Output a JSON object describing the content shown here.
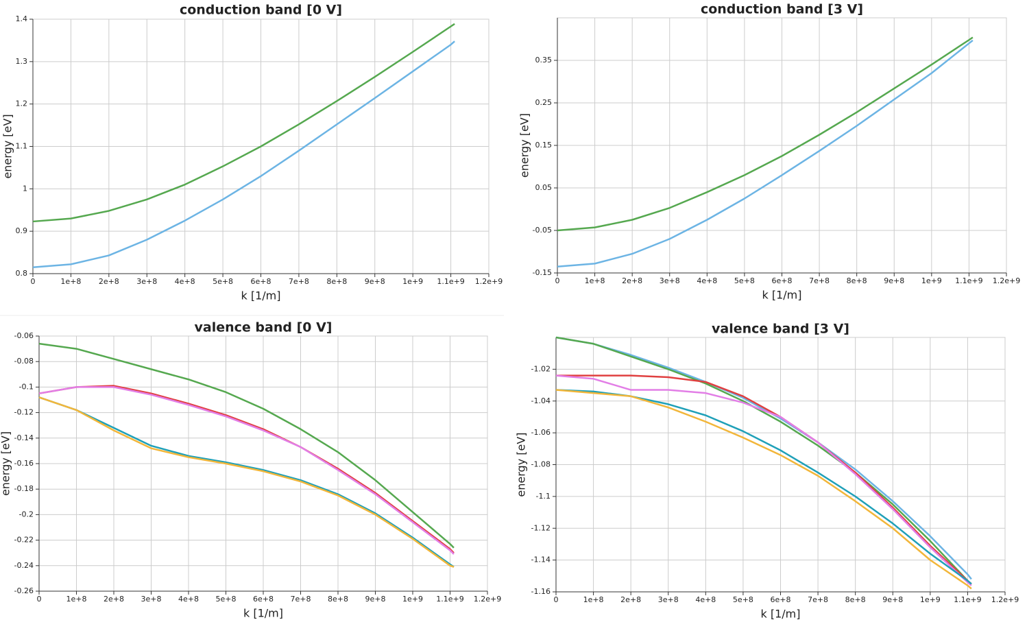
{
  "chart_data": [
    {
      "type": "line",
      "title": "conduction band [0 V]",
      "x_label": "k [1/m]",
      "y_label": "energy [eV]",
      "x": [
        0,
        100000000.0,
        200000000.0,
        300000000.0,
        400000000.0,
        500000000.0,
        600000000.0,
        700000000.0,
        800000000.0,
        900000000.0,
        1000000000.0,
        1100000000.0,
        1110000000.0
      ],
      "series": [
        {
          "color": "#6cb4e4",
          "values": [
            0.815,
            0.822,
            0.843,
            0.88,
            0.925,
            0.975,
            1.03,
            1.09,
            1.152,
            1.214,
            1.277,
            1.34,
            1.348
          ]
        },
        {
          "color": "#55a84f",
          "values": [
            0.923,
            0.93,
            0.948,
            0.975,
            1.01,
            1.053,
            1.1,
            1.152,
            1.207,
            1.264,
            1.323,
            1.383,
            1.389
          ]
        }
      ],
      "xlim": [
        0,
        1200000000.0
      ],
      "ylim": [
        0.8,
        1.4
      ],
      "xticks": [
        0,
        {
          "value": 100000000.0,
          "label": "1e+8"
        },
        {
          "value": 200000000.0,
          "label": "2e+8"
        },
        {
          "value": 300000000.0,
          "label": "3e+8"
        },
        {
          "value": 400000000.0,
          "label": "4e+8"
        },
        {
          "value": 500000000.0,
          "label": "5e+8"
        },
        {
          "value": 600000000.0,
          "label": "6e+8"
        },
        {
          "value": 700000000.0,
          "label": "7e+8"
        },
        {
          "value": 800000000.0,
          "label": "8e+8"
        },
        {
          "value": 900000000.0,
          "label": "9e+8"
        },
        {
          "value": 1000000000.0,
          "label": "1e+9"
        },
        {
          "value": 1100000000.0,
          "label": "1.1e+9"
        },
        {
          "value": 1200000000.0,
          "label": "1.2e+9"
        }
      ],
      "yticks": [
        0.8,
        0.9,
        1,
        1.1,
        1.2,
        1.3,
        1.4
      ],
      "grid": true
    },
    {
      "type": "line",
      "title": "conduction band [3 V]",
      "x_label": "k [1/m]",
      "y_label": "energy [eV]",
      "x": [
        0,
        100000000.0,
        200000000.0,
        300000000.0,
        400000000.0,
        500000000.0,
        600000000.0,
        700000000.0,
        800000000.0,
        900000000.0,
        1000000000.0,
        1100000000.0,
        1110000000.0
      ],
      "series": [
        {
          "color": "#6cb4e4",
          "values": [
            -0.135,
            -0.128,
            -0.105,
            -0.07,
            -0.025,
            0.025,
            0.08,
            0.137,
            0.196,
            0.258,
            0.32,
            0.39,
            0.397
          ]
        },
        {
          "color": "#55a84f",
          "values": [
            -0.05,
            -0.043,
            -0.025,
            0.003,
            0.04,
            0.08,
            0.125,
            0.175,
            0.228,
            0.284,
            0.34,
            0.398,
            0.404
          ]
        }
      ],
      "xlim": [
        0,
        1200000000.0
      ],
      "ylim": [
        -0.15,
        0.45
      ],
      "xticks": [
        0,
        {
          "value": 100000000.0,
          "label": "1e+8"
        },
        {
          "value": 200000000.0,
          "label": "2e+8"
        },
        {
          "value": 300000000.0,
          "label": "3e+8"
        },
        {
          "value": 400000000.0,
          "label": "4e+8"
        },
        {
          "value": 500000000.0,
          "label": "5e+8"
        },
        {
          "value": 600000000.0,
          "label": "6e+8"
        },
        {
          "value": 700000000.0,
          "label": "7e+8"
        },
        {
          "value": 800000000.0,
          "label": "8e+8"
        },
        {
          "value": 900000000.0,
          "label": "9e+8"
        },
        {
          "value": 1000000000.0,
          "label": "1e+9"
        },
        {
          "value": 1100000000.0,
          "label": "1.1e+9"
        },
        {
          "value": 1200000000.0,
          "label": "1.2e+9"
        }
      ],
      "yticks": [
        -0.15,
        -0.05,
        0.05,
        0.15,
        0.25,
        0.35
      ],
      "grid": true
    },
    {
      "type": "line",
      "title": "valence band [0 V]",
      "x_label": "k [1/m]",
      "y_label": "energy [eV]",
      "x": [
        0,
        100000000.0,
        200000000.0,
        300000000.0,
        400000000.0,
        500000000.0,
        600000000.0,
        700000000.0,
        800000000.0,
        900000000.0,
        1000000000.0,
        1100000000.0,
        1110000000.0
      ],
      "series": [
        {
          "color": "#55a84f",
          "values": [
            -0.066,
            -0.07,
            -0.078,
            -0.086,
            -0.094,
            -0.104,
            -0.117,
            -0.133,
            -0.151,
            -0.173,
            -0.198,
            -0.223,
            -0.226
          ]
        },
        {
          "color": "#e04040",
          "values": [
            -0.105,
            -0.1,
            -0.099,
            -0.105,
            -0.113,
            -0.122,
            -0.133,
            -0.147,
            -0.164,
            -0.183,
            -0.205,
            -0.227,
            -0.23
          ]
        },
        {
          "color": "#e27ee6",
          "values": [
            -0.105,
            -0.1,
            -0.1,
            -0.106,
            -0.114,
            -0.123,
            -0.134,
            -0.147,
            -0.165,
            -0.184,
            -0.206,
            -0.228,
            -0.231
          ]
        },
        {
          "color": "#1fa0b8",
          "values": [
            -0.108,
            -0.118,
            -0.132,
            -0.146,
            -0.154,
            -0.159,
            -0.165,
            -0.173,
            -0.184,
            -0.199,
            -0.218,
            -0.239,
            -0.241
          ]
        },
        {
          "color": "#f2b63a",
          "values": [
            -0.108,
            -0.118,
            -0.134,
            -0.148,
            -0.155,
            -0.16,
            -0.166,
            -0.174,
            -0.185,
            -0.2,
            -0.219,
            -0.24,
            -0.241
          ]
        }
      ],
      "xlim": [
        0,
        1200000000.0
      ],
      "ylim": [
        -0.26,
        -0.06
      ],
      "xticks": [
        0,
        {
          "value": 100000000.0,
          "label": "1e+8"
        },
        {
          "value": 200000000.0,
          "label": "2e+8"
        },
        {
          "value": 300000000.0,
          "label": "3e+8"
        },
        {
          "value": 400000000.0,
          "label": "4e+8"
        },
        {
          "value": 500000000.0,
          "label": "5e+8"
        },
        {
          "value": 600000000.0,
          "label": "6e+8"
        },
        {
          "value": 700000000.0,
          "label": "7e+8"
        },
        {
          "value": 800000000.0,
          "label": "8e+8"
        },
        {
          "value": 900000000.0,
          "label": "9e+8"
        },
        {
          "value": 1000000000.0,
          "label": "1e+9"
        },
        {
          "value": 1100000000.0,
          "label": "1.1e+9"
        },
        {
          "value": 1200000000.0,
          "label": "1.2e+9"
        }
      ],
      "yticks": [
        -0.26,
        -0.24,
        -0.22,
        -0.2,
        -0.18,
        -0.16,
        -0.14,
        -0.12,
        -0.1,
        -0.08,
        -0.06
      ],
      "grid": true
    },
    {
      "type": "line",
      "title": "valence band [3 V]",
      "x_label": "k [1/m]",
      "y_label": "energy [eV]",
      "x": [
        0,
        100000000.0,
        200000000.0,
        300000000.0,
        400000000.0,
        500000000.0,
        600000000.0,
        700000000.0,
        800000000.0,
        900000000.0,
        1000000000.0,
        1100000000.0,
        1110000000.0
      ],
      "series": [
        {
          "color": "#6cb4e4",
          "values": [
            -1.0,
            -1.004,
            -1.011,
            -1.019,
            -1.028,
            -1.038,
            -1.051,
            -1.066,
            -1.083,
            -1.103,
            -1.125,
            -1.149,
            -1.152
          ]
        },
        {
          "color": "#55a84f",
          "values": [
            -1.0,
            -1.004,
            -1.012,
            -1.02,
            -1.029,
            -1.04,
            -1.053,
            -1.068,
            -1.085,
            -1.105,
            -1.128,
            -1.153,
            -1.155
          ]
        },
        {
          "color": "#e04040",
          "values": [
            -1.024,
            -1.024,
            -1.024,
            -1.025,
            -1.028,
            -1.037,
            -1.05,
            -1.066,
            -1.085,
            -1.107,
            -1.131,
            -1.153,
            -1.155
          ]
        },
        {
          "color": "#e27ee6",
          "values": [
            -1.024,
            -1.026,
            -1.033,
            -1.033,
            -1.035,
            -1.041,
            -1.05,
            -1.066,
            -1.086,
            -1.108,
            -1.132,
            -1.154,
            -1.156
          ]
        },
        {
          "color": "#1fa0b8",
          "values": [
            -1.033,
            -1.034,
            -1.037,
            -1.042,
            -1.049,
            -1.059,
            -1.071,
            -1.085,
            -1.1,
            -1.117,
            -1.136,
            -1.153,
            -1.155
          ]
        },
        {
          "color": "#f2b63a",
          "values": [
            -1.033,
            -1.035,
            -1.037,
            -1.044,
            -1.053,
            -1.063,
            -1.074,
            -1.087,
            -1.103,
            -1.12,
            -1.14,
            -1.156,
            -1.158
          ]
        }
      ],
      "xlim": [
        0,
        1200000000.0
      ],
      "ylim": [
        -1.16,
        -1.0
      ],
      "xticks": [
        0,
        {
          "value": 100000000.0,
          "label": "1e+8"
        },
        {
          "value": 200000000.0,
          "label": "2e+8"
        },
        {
          "value": 300000000.0,
          "label": "3e+8"
        },
        {
          "value": 400000000.0,
          "label": "4e+8"
        },
        {
          "value": 500000000.0,
          "label": "5e+8"
        },
        {
          "value": 600000000.0,
          "label": "6e+8"
        },
        {
          "value": 700000000.0,
          "label": "7e+8"
        },
        {
          "value": 800000000.0,
          "label": "8e+8"
        },
        {
          "value": 900000000.0,
          "label": "9e+8"
        },
        {
          "value": 1000000000.0,
          "label": "1e+9"
        },
        {
          "value": 1100000000.0,
          "label": "1.1e+9"
        },
        {
          "value": 1200000000.0,
          "label": "1.2e+9"
        }
      ],
      "yticks": [
        -1.16,
        -1.14,
        -1.12,
        -1.1,
        -1.08,
        -1.06,
        -1.04,
        -1.02
      ],
      "grid": true
    }
  ]
}
